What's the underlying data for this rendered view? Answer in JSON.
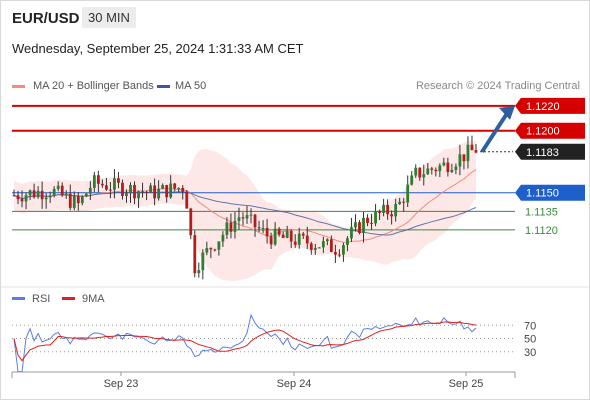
{
  "header": {
    "pair": "EUR/USD",
    "timeframe": "30 MIN"
  },
  "datetime": "Wednesday, September 25, 2024 1:31:33 AM CET",
  "legend": {
    "bollinger": {
      "label": "MA 20 + Bollinger Bands",
      "color": "#f28b82"
    },
    "ma50": {
      "label": "MA 50",
      "color": "#3a5a9c"
    }
  },
  "copyright": "Research © 2024 Trading Central",
  "chart_data": {
    "type": "candlestick",
    "y_range": [
      1.1078,
      1.1228
    ],
    "x_axis": {
      "ticks": [
        "Sep 23",
        "Sep 24",
        "Sep 25"
      ]
    },
    "levels": [
      {
        "value": 1.122,
        "label": "1.1220",
        "role": "resistance",
        "color": "#d60000"
      },
      {
        "value": 1.12,
        "label": "1.1200",
        "role": "resistance",
        "color": "#d60000"
      },
      {
        "value": 1.1183,
        "label": "1.1183",
        "role": "last",
        "color": "#222222"
      },
      {
        "value": 1.115,
        "label": "1.1150",
        "role": "pivot",
        "color": "#1f5fcc"
      },
      {
        "value": 1.1135,
        "label": "1.1135",
        "role": "support",
        "color": "#3a8a3a"
      },
      {
        "value": 1.112,
        "label": "1.1120",
        "role": "support",
        "color": "#3a8a3a"
      }
    ],
    "arrow": {
      "from": 1.1183,
      "to": 1.122,
      "color": "#2e5fa0"
    },
    "rsi": {
      "legend": [
        {
          "label": "RSI",
          "color": "#5b7fe0"
        },
        {
          "label": "9MA",
          "color": "#e02020"
        }
      ],
      "levels": [
        "70",
        "50",
        "30"
      ],
      "y_range": [
        10,
        90
      ]
    }
  }
}
